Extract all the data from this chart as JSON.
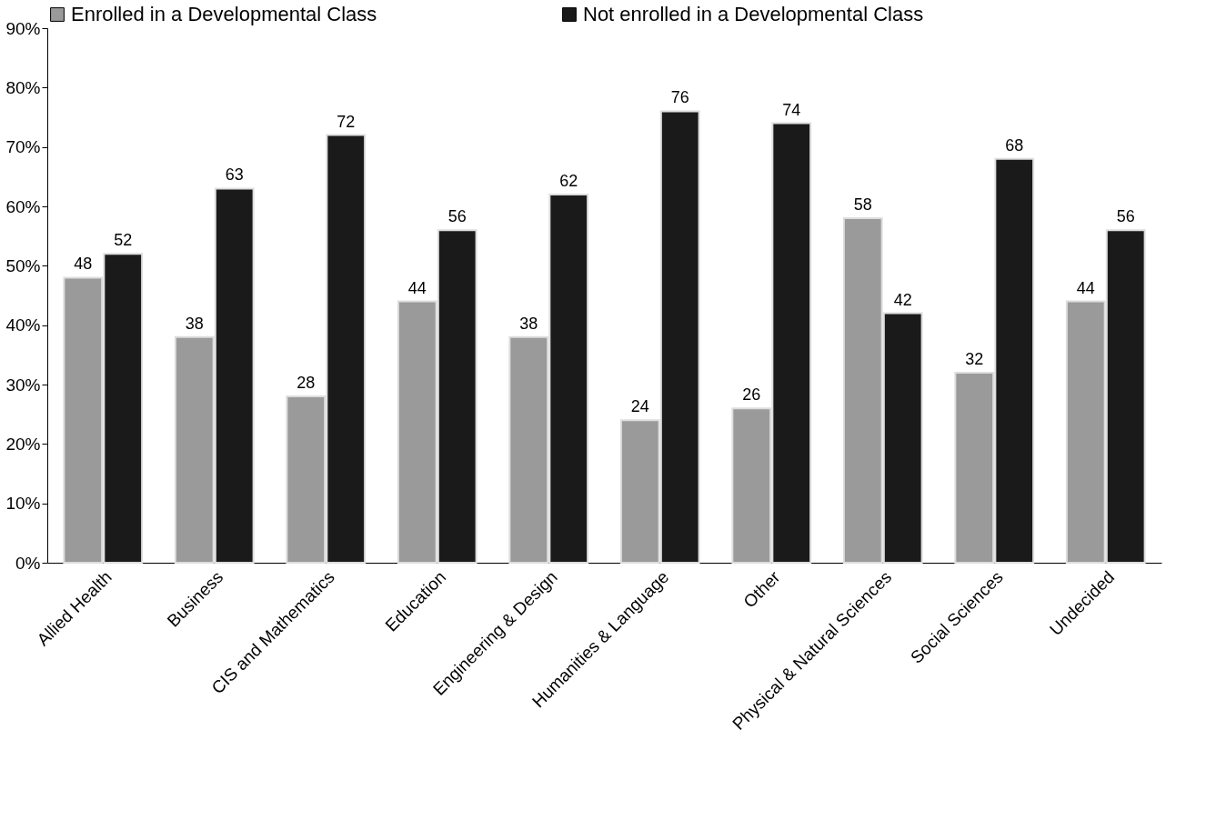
{
  "chart_data": {
    "type": "bar",
    "categories": [
      "Allied Health",
      "Business",
      "CIS and Mathematics",
      "Education",
      "Engineering & Design",
      "Humanities & Language",
      "Other",
      "Physical & Natural Sciences",
      "Social Sciences",
      "Undecided"
    ],
    "series": [
      {
        "name": "Enrolled in a Developmental Class",
        "color": "#9a9a9a",
        "values": [
          48,
          38,
          28,
          44,
          38,
          24,
          26,
          58,
          32,
          44
        ]
      },
      {
        "name": "Not enrolled in a Developmental Class",
        "color": "#1a1a1a",
        "values": [
          52,
          63,
          72,
          56,
          62,
          76,
          74,
          42,
          68,
          56
        ]
      }
    ],
    "ylim": [
      0,
      90
    ],
    "yticks": [
      {
        "value": 0,
        "label": "0%"
      },
      {
        "value": 10,
        "label": "10%"
      },
      {
        "value": 20,
        "label": "20%"
      },
      {
        "value": 30,
        "label": "30%"
      },
      {
        "value": 40,
        "label": "40%"
      },
      {
        "value": 50,
        "label": "50%"
      },
      {
        "value": 60,
        "label": "60%"
      },
      {
        "value": 70,
        "label": "70%"
      },
      {
        "value": 80,
        "label": "80%"
      },
      {
        "value": 90,
        "label": "90%"
      }
    ],
    "data_labels": true,
    "legend": "top",
    "grid": false
  }
}
